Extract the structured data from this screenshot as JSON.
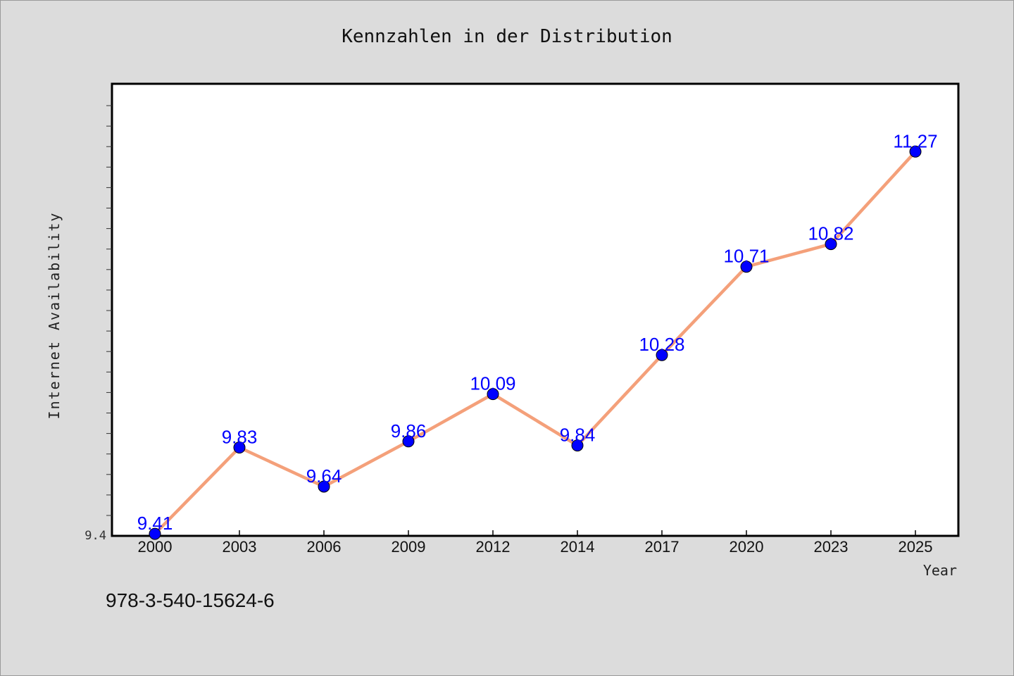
{
  "chart_data": {
    "type": "line",
    "title": "Kennzahlen in der Distribution",
    "xlabel": "Year",
    "ylabel": "Internet Availability",
    "categories": [
      "2000",
      "2003",
      "2006",
      "2009",
      "2012",
      "2014",
      "2017",
      "2020",
      "2023",
      "2025"
    ],
    "series": [
      {
        "values": [
          9.41,
          9.83,
          9.64,
          9.86,
          10.09,
          9.84,
          10.28,
          10.71,
          10.82,
          11.27
        ]
      }
    ],
    "y_tick_label": "9.4",
    "ylim": [
      9.4,
      11.6
    ],
    "grid": false,
    "colors": {
      "line": "#f4a07a",
      "marker": "#0000ff",
      "data_label": "#0000ff",
      "background": "#dcdcdc",
      "plot_background": "#ffffff"
    }
  },
  "footer_text": "978-3-540-15624-6"
}
